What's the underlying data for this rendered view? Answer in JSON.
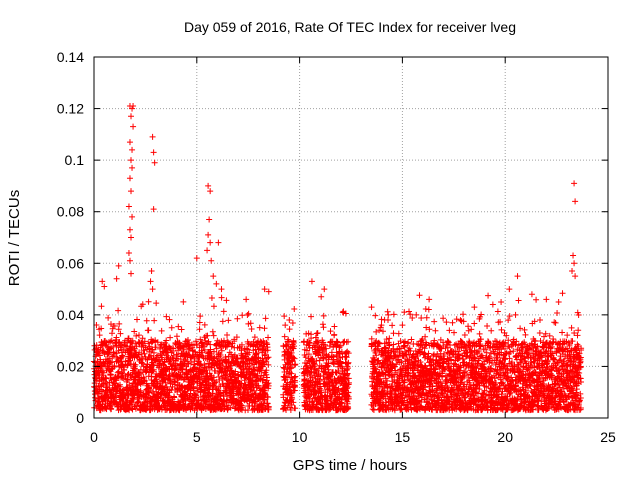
{
  "chart_data": {
    "type": "scatter",
    "title": "Day 059 of 2016, Rate Of TEC Index for receiver lveg",
    "xlabel": "GPS time / hours",
    "ylabel": "ROTI / TECUs",
    "xlim": [
      0,
      25
    ],
    "ylim": [
      0,
      0.14
    ],
    "x_ticks": [
      "0",
      "5",
      "10",
      "15",
      "20",
      "25"
    ],
    "y_ticks": [
      "0",
      "0.02",
      "0.04",
      "0.06",
      "0.08",
      "0.1",
      "0.12",
      "0.14"
    ],
    "marker": "+",
    "color": "#ff0000",
    "grid": true,
    "series": [
      {
        "name": "ROTI",
        "points": [
          [
            1.75,
            0.121
          ],
          [
            1.85,
            0.12
          ],
          [
            1.9,
            0.121
          ],
          [
            1.8,
            0.117
          ],
          [
            1.9,
            0.113
          ],
          [
            1.75,
            0.107
          ],
          [
            1.85,
            0.104
          ],
          [
            1.8,
            0.1
          ],
          [
            1.85,
            0.097
          ],
          [
            1.75,
            0.093
          ],
          [
            1.8,
            0.088
          ],
          [
            1.7,
            0.082
          ],
          [
            1.85,
            0.078
          ],
          [
            1.75,
            0.073
          ],
          [
            1.8,
            0.07
          ],
          [
            1.7,
            0.064
          ],
          [
            1.75,
            0.061
          ],
          [
            1.8,
            0.056
          ],
          [
            2.85,
            0.109
          ],
          [
            2.9,
            0.103
          ],
          [
            2.95,
            0.099
          ],
          [
            2.9,
            0.081
          ],
          [
            2.8,
            0.057
          ],
          [
            2.75,
            0.053
          ],
          [
            2.85,
            0.05
          ],
          [
            1.2,
            0.059
          ],
          [
            1.1,
            0.054
          ],
          [
            0.4,
            0.053
          ],
          [
            0.5,
            0.051
          ],
          [
            5.55,
            0.09
          ],
          [
            5.65,
            0.088
          ],
          [
            5.6,
            0.077
          ],
          [
            5.55,
            0.071
          ],
          [
            5.65,
            0.068
          ],
          [
            6.05,
            0.068
          ],
          [
            5.5,
            0.065
          ],
          [
            5.0,
            0.062
          ],
          [
            5.7,
            0.061
          ],
          [
            5.8,
            0.055
          ],
          [
            5.95,
            0.052
          ],
          [
            6.2,
            0.05
          ],
          [
            7.4,
            0.046
          ],
          [
            8.3,
            0.05
          ],
          [
            8.5,
            0.049
          ],
          [
            9.5,
            0.038
          ],
          [
            9.3,
            0.036
          ],
          [
            10.6,
            0.053
          ],
          [
            11.2,
            0.05
          ],
          [
            11.05,
            0.047
          ],
          [
            12.1,
            0.041
          ],
          [
            13.5,
            0.043
          ],
          [
            14.3,
            0.038
          ],
          [
            15.0,
            0.036
          ],
          [
            16.3,
            0.046
          ],
          [
            18.5,
            0.043
          ],
          [
            19.4,
            0.044
          ],
          [
            19.8,
            0.045
          ],
          [
            20.2,
            0.05
          ],
          [
            20.6,
            0.055
          ],
          [
            21.3,
            0.048
          ],
          [
            22.0,
            0.046
          ],
          [
            22.6,
            0.045
          ],
          [
            23.35,
            0.091
          ],
          [
            23.4,
            0.084
          ],
          [
            23.3,
            0.063
          ],
          [
            23.35,
            0.06
          ],
          [
            23.25,
            0.057
          ],
          [
            23.4,
            0.055
          ]
        ]
      }
    ],
    "dense_band": {
      "x_ranges": [
        [
          0,
          8.5
        ],
        [
          9.2,
          9.8
        ],
        [
          10.2,
          12.4
        ],
        [
          13.5,
          23.7
        ]
      ],
      "y_range": [
        0.003,
        0.03
      ]
    }
  }
}
